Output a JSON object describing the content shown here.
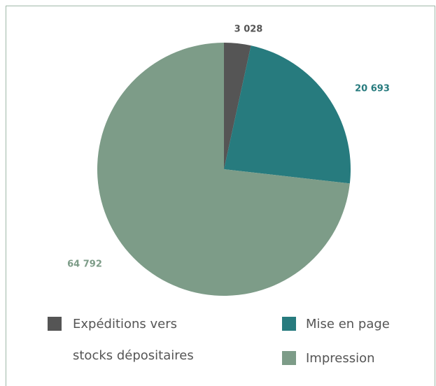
{
  "chart_data": {
    "type": "pie",
    "categories": [
      "Expéditions vers stocks dépositaires",
      "Mise en page",
      "Impression"
    ],
    "values": [
      3028,
      20693,
      64792
    ],
    "value_labels": [
      "3 028",
      "20 693",
      "64 792"
    ],
    "colors": [
      "#555555",
      "#277b7e",
      "#7d9c88"
    ]
  }
}
